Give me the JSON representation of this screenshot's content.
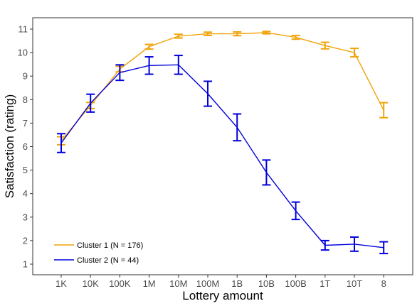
{
  "chart_data": {
    "type": "line",
    "xlabel": "Lottery amount",
    "ylabel": "Satisfaction (rating)",
    "categories": [
      "1K",
      "10K",
      "100K",
      "1M",
      "10M",
      "100M",
      "1B",
      "10B",
      "100B",
      "1T",
      "10T",
      "8"
    ],
    "ylim": [
      0.5,
      11.5
    ],
    "yticks": [
      1,
      2,
      3,
      4,
      5,
      6,
      7,
      8,
      9,
      10,
      11
    ],
    "grid": false,
    "legend_position": "bottom-left",
    "series": [
      {
        "name": "Cluster 1 (N = 176)",
        "color": "#F0A30A",
        "values": [
          6.25,
          7.75,
          9.3,
          10.25,
          10.7,
          10.8,
          10.8,
          10.85,
          10.65,
          10.3,
          10.0,
          7.55
        ],
        "error": [
          0.17,
          0.13,
          0.12,
          0.1,
          0.08,
          0.07,
          0.08,
          0.05,
          0.08,
          0.14,
          0.18,
          0.32
        ]
      },
      {
        "name": "Cluster 2 (N = 44)",
        "color": "#0000DD",
        "values": [
          6.15,
          7.85,
          9.15,
          9.45,
          9.48,
          8.25,
          6.82,
          4.9,
          3.27,
          1.8,
          1.85,
          1.7
        ],
        "error": [
          0.4,
          0.38,
          0.33,
          0.37,
          0.4,
          0.53,
          0.57,
          0.53,
          0.37,
          0.2,
          0.3,
          0.25
        ]
      }
    ]
  }
}
